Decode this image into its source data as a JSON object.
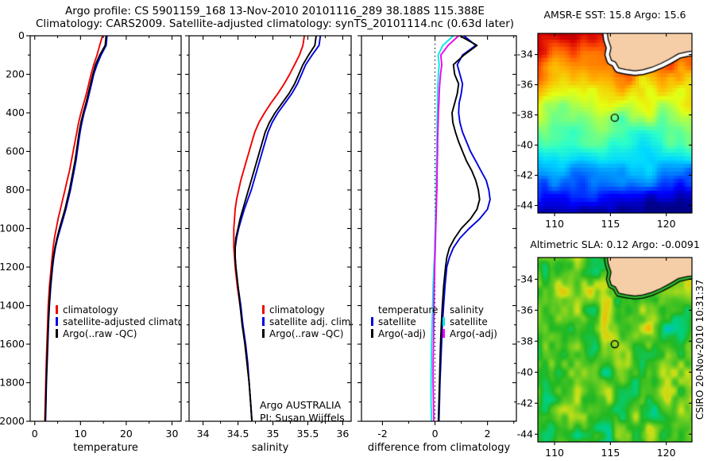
{
  "header": {
    "line1": "Argo profile: CS 5901159_168 13-Nov-2010 20101116_289 38.188S 115.388E",
    "line2": "Climatology: CARS2009. Satellite-adjusted climatology: synTS_20101114.nc (0.63d later)"
  },
  "branding": {
    "org_line": "Argo AUSTRALIA",
    "pi_line": "PI: Susan Wijffels",
    "watermark": "CSIRO 20-Nov-2010 10:31:37"
  },
  "colors": {
    "climatology": "#f00000",
    "satellite": "#0000e0",
    "argo": "#000000",
    "sal_satellite": "#00e8e8",
    "sal_argo": "#f000f0",
    "land": "#f5cda6",
    "coast_band_sst": "#ffffff",
    "coast_band_sla": "#2db82d",
    "jet": [
      "#000089",
      "#0000ff",
      "#0080ff",
      "#00d9ff",
      "#2cffc9",
      "#8aff6c",
      "#e4ff12",
      "#ffb200",
      "#ff4c00",
      "#d40000",
      "#890000"
    ],
    "sla_colormap": [
      "#0040ff",
      "#00b4ff",
      "#00d080",
      "#22b822",
      "#66cc22",
      "#c8e018",
      "#ffb000",
      "#ff6000"
    ]
  },
  "land_polygon": [
    [
      114.6,
      -31.9
    ],
    [
      114.8,
      -33.0
    ],
    [
      115.05,
      -33.55
    ],
    [
      114.92,
      -34.0
    ],
    [
      115.08,
      -34.38
    ],
    [
      115.45,
      -34.5
    ],
    [
      115.75,
      -34.9
    ],
    [
      116.4,
      -35.0
    ],
    [
      117.2,
      -35.08
    ],
    [
      117.9,
      -35.02
    ],
    [
      118.7,
      -34.85
    ],
    [
      119.5,
      -34.6
    ],
    [
      120.3,
      -34.3
    ],
    [
      121.1,
      -33.95
    ],
    [
      121.9,
      -33.82
    ],
    [
      123.2,
      -33.7
    ],
    [
      123.2,
      -31.9
    ]
  ],
  "chart_data": {
    "type": "multi-panel",
    "depth_axis": {
      "lim": [
        0,
        2000
      ],
      "tick_step": 200,
      "minor_step": 100,
      "ticks": [
        0,
        200,
        400,
        600,
        800,
        1000,
        1200,
        1400,
        1600,
        1800,
        2000
      ]
    },
    "depths": [
      0,
      50,
      100,
      150,
      200,
      250,
      300,
      350,
      400,
      450,
      500,
      550,
      600,
      650,
      700,
      750,
      800,
      850,
      900,
      950,
      1000,
      1050,
      1100,
      1150,
      1200,
      1300,
      1400,
      1500,
      1600,
      1700,
      1800,
      1900,
      2000
    ],
    "panels": [
      {
        "id": "temperature",
        "type": "line",
        "xlabel": "temperature",
        "xlim": [
          -1,
          32
        ],
        "xticks": [
          0,
          10,
          20,
          30
        ],
        "xminor": [
          5,
          15,
          25
        ],
        "series": [
          {
            "name": "climatology",
            "color": "#f00000",
            "values": [
              14.8,
              14.2,
              13.6,
              12.9,
              12.3,
              11.8,
              11.3,
              10.7,
              10.1,
              9.6,
              9.2,
              8.8,
              8.4,
              8.0,
              7.6,
              7.1,
              6.6,
              6.1,
              5.6,
              5.1,
              4.7,
              4.3,
              4.0,
              3.8,
              3.6,
              3.2,
              2.95,
              2.8,
              2.65,
              2.5,
              2.4,
              2.3,
              2.2
            ]
          },
          {
            "name": "satellite-adjusted climatology",
            "color": "#0000e0",
            "values": [
              15.8,
              15.6,
              14.5,
              13.6,
              12.9,
              12.4,
              11.9,
              11.4,
              10.8,
              10.3,
              9.9,
              9.6,
              9.3,
              9.0,
              8.6,
              8.2,
              7.8,
              7.3,
              6.8,
              6.2,
              5.6,
              5.0,
              4.5,
              4.15,
              3.9,
              3.5,
              3.2,
              3.0,
              2.85,
              2.7,
              2.55,
              2.45,
              2.35
            ]
          },
          {
            "name": "Argo(..raw -QC)",
            "color": "#000000",
            "values": [
              15.6,
              15.4,
              14.2,
              13.3,
              12.7,
              12.2,
              11.7,
              11.2,
              10.6,
              10.1,
              9.7,
              9.4,
              9.1,
              8.8,
              8.4,
              8.0,
              7.6,
              7.1,
              6.6,
              6.0,
              5.4,
              4.85,
              4.4,
              4.05,
              3.8,
              3.4,
              3.15,
              2.95,
              2.8,
              2.65,
              2.5,
              2.4,
              2.3
            ]
          }
        ],
        "legend": {
          "items": [
            {
              "label": "climatology",
              "color": "#f00000"
            },
            {
              "label": "satellite-adjusted climatology",
              "color": "#0000e0"
            },
            {
              "label": "Argo(..raw -QC)",
              "color": "#000000"
            }
          ]
        }
      },
      {
        "id": "salinity",
        "type": "line",
        "xlabel": "salinity",
        "xlim": [
          33.8,
          36.12
        ],
        "xticks": [
          34,
          34.5,
          35,
          35.5,
          36
        ],
        "xminor": [
          34.25,
          34.75,
          35.25,
          35.75
        ],
        "series": [
          {
            "name": "climatology",
            "color": "#f00000",
            "values": [
              35.45,
              35.43,
              35.38,
              35.31,
              35.24,
              35.16,
              35.07,
              34.97,
              34.88,
              34.8,
              34.74,
              34.7,
              34.66,
              34.62,
              34.58,
              34.54,
              34.51,
              34.48,
              34.46,
              34.45,
              34.44,
              34.44,
              34.44,
              34.45,
              34.46,
              34.49,
              34.53,
              34.57,
              34.6,
              34.63,
              34.66,
              34.68,
              34.7
            ]
          },
          {
            "name": "satellite adj. clim.",
            "color": "#0000e0",
            "values": [
              35.68,
              35.66,
              35.56,
              35.47,
              35.41,
              35.35,
              35.27,
              35.17,
              35.07,
              34.99,
              34.93,
              34.89,
              34.85,
              34.81,
              34.77,
              34.73,
              34.69,
              34.64,
              34.59,
              34.55,
              34.51,
              34.48,
              34.46,
              34.46,
              34.47,
              34.5,
              34.54,
              34.57,
              34.61,
              34.64,
              34.66,
              34.68,
              34.7
            ]
          },
          {
            "name": "Argo(..raw -QC)",
            "color": "#000000",
            "values": [
              35.62,
              35.6,
              35.51,
              35.43,
              35.37,
              35.31,
              35.23,
              35.13,
              35.03,
              34.95,
              34.89,
              34.85,
              34.81,
              34.77,
              34.73,
              34.69,
              34.65,
              34.61,
              34.57,
              34.53,
              34.5,
              34.47,
              34.46,
              34.46,
              34.47,
              34.5,
              34.53,
              34.56,
              34.6,
              34.63,
              34.66,
              34.68,
              34.7
            ]
          }
        ],
        "legend": {
          "items": [
            {
              "label": "climatology",
              "color": "#f00000"
            },
            {
              "label": "satellite adj. clim.",
              "color": "#0000e0"
            },
            {
              "label": "Argo(..raw -QC)",
              "color": "#000000"
            }
          ]
        }
      },
      {
        "id": "difference",
        "type": "line",
        "zero_line": true,
        "xlabel": "difference from climatology",
        "xlim": [
          -2.8,
          3.1
        ],
        "xticks": [
          -2,
          0,
          2
        ],
        "xminor": [
          -1,
          1,
          3
        ],
        "series": [
          {
            "name": "temperature satellite",
            "color": "#0000e0",
            "values": [
              1.1,
              1.55,
              1.05,
              0.85,
              0.95,
              1.05,
              1.0,
              0.92,
              0.9,
              0.95,
              1.05,
              1.2,
              1.35,
              1.55,
              1.75,
              1.95,
              2.05,
              2.1,
              2.0,
              1.7,
              1.3,
              0.95,
              0.7,
              0.55,
              0.45,
              0.38,
              0.33,
              0.28,
              0.25,
              0.22,
              0.19,
              0.17,
              0.15
            ]
          },
          {
            "name": "temperature Argo(-adj)",
            "color": "#000000",
            "values": [
              0.95,
              1.6,
              1.1,
              0.7,
              0.75,
              0.9,
              0.85,
              0.75,
              0.65,
              0.68,
              0.78,
              0.9,
              1.05,
              1.2,
              1.4,
              1.55,
              1.65,
              1.7,
              1.6,
              1.35,
              1.0,
              0.75,
              0.55,
              0.45,
              0.4,
              0.33,
              0.28,
              0.24,
              0.21,
              0.19,
              0.17,
              0.15,
              0.13
            ]
          },
          {
            "name": "salinity satellite",
            "color": "#00e8e8",
            "values": [
              0.7,
              0.3,
              0.12,
              0.16,
              0.13,
              0.11,
              0.1,
              0.1,
              0.09,
              0.08,
              0.08,
              0.07,
              0.07,
              0.06,
              0.06,
              0.05,
              0.05,
              0.04,
              0.03,
              0.02,
              0.01,
              0.0,
              -0.01,
              -0.02,
              -0.04,
              -0.07,
              -0.09,
              -0.11,
              -0.13,
              -0.14,
              -0.15,
              -0.15,
              -0.13
            ]
          },
          {
            "name": "salinity Argo(-adj)",
            "color": "#f000f0",
            "values": [
              0.9,
              0.5,
              0.22,
              0.26,
              0.21,
              0.18,
              0.16,
              0.15,
              0.13,
              0.12,
              0.11,
              0.1,
              0.1,
              0.09,
              0.08,
              0.08,
              0.07,
              0.06,
              0.05,
              0.04,
              0.03,
              0.02,
              0.01,
              0.0,
              -0.01,
              -0.03,
              -0.04,
              -0.05,
              -0.06,
              -0.07,
              -0.07,
              -0.06,
              -0.05
            ]
          }
        ],
        "legend": {
          "columns": [
            {
              "header": "temperature",
              "items": [
                {
                  "label": "satellite",
                  "color": "#0000e0"
                },
                {
                  "label": "Argo(-adj)",
                  "color": "#000000"
                }
              ]
            },
            {
              "header": "salinity",
              "items": [
                {
                  "label": "satellite",
                  "color": "#00e8e8"
                },
                {
                  "label": "Argo(-adj)",
                  "color": "#f000f0"
                }
              ]
            }
          ]
        }
      }
    ],
    "maps": [
      {
        "id": "sst",
        "type": "heatmap",
        "style": "sst",
        "title": "AMSR-E SST: 15.8 Argo: 15.6",
        "sst_value": 15.8,
        "argo_value": 15.6,
        "xlim": [
          108.5,
          122.3
        ],
        "ylim": [
          -32.6,
          -44.5
        ],
        "xticks": [
          110,
          115,
          120
        ],
        "yticks": [
          -34,
          -36,
          -38,
          -40,
          -42,
          -44
        ],
        "marker": {
          "lon": 115.39,
          "lat": -38.19
        }
      },
      {
        "id": "sla",
        "type": "heatmap",
        "style": "sla",
        "title": "Altimetric SLA: 0.12 Argo: -0.0091",
        "sla_value": 0.12,
        "argo_value": -0.0091,
        "xlim": [
          108.5,
          122.3
        ],
        "ylim": [
          -32.6,
          -44.5
        ],
        "xticks": [
          110,
          115,
          120
        ],
        "yticks": [
          -34,
          -36,
          -38,
          -40,
          -42,
          -44
        ],
        "marker": {
          "lon": 115.39,
          "lat": -38.19
        }
      }
    ]
  }
}
